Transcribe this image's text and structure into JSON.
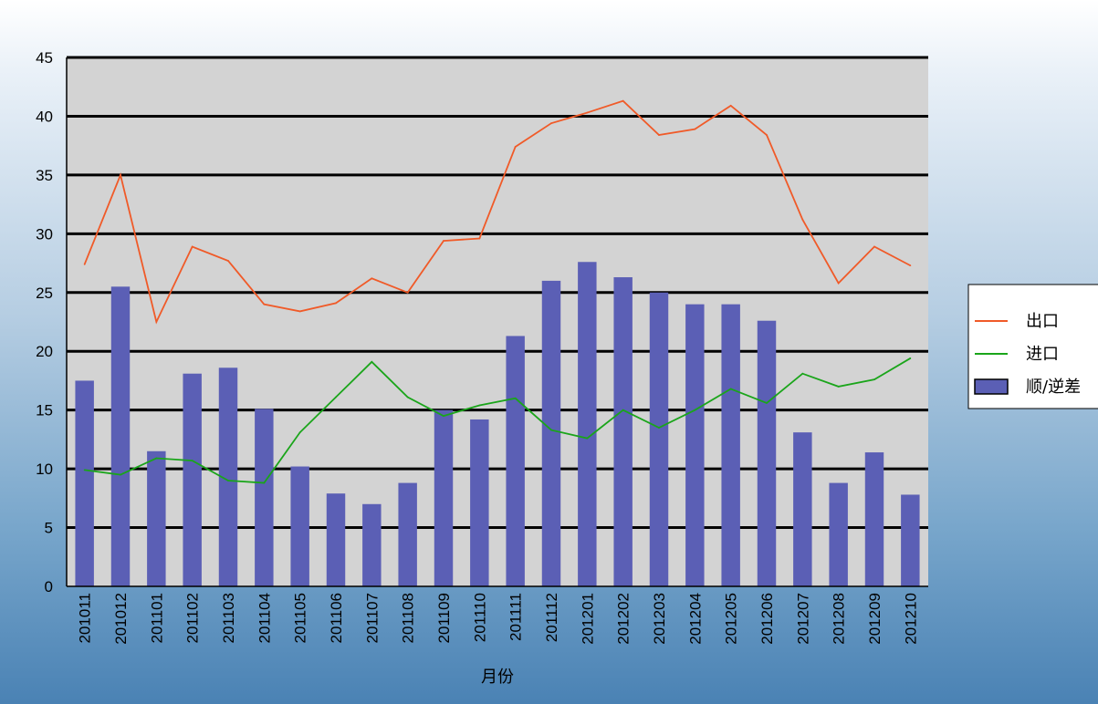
{
  "chart_data": {
    "type": "bar",
    "title": "",
    "xlabel": "月份",
    "ylabel": "",
    "ylim": [
      0,
      45
    ],
    "yticks": [
      0,
      5,
      10,
      15,
      20,
      25,
      30,
      35,
      40,
      45
    ],
    "grid": true,
    "legend_position": "right",
    "categories": [
      "201011",
      "201012",
      "201101",
      "201102",
      "201103",
      "201104",
      "201105",
      "201106",
      "201107",
      "201108",
      "201109",
      "201110",
      "201111",
      "201112",
      "201201",
      "201202",
      "201203",
      "201204",
      "201205",
      "201206",
      "201207",
      "201208",
      "201209",
      "201210"
    ],
    "series": [
      {
        "name": "出口",
        "type": "line",
        "color": "#f05a28",
        "values": [
          27.4,
          35.0,
          22.5,
          28.9,
          27.7,
          24.0,
          23.4,
          24.1,
          26.2,
          25.0,
          29.4,
          29.6,
          37.4,
          39.4,
          40.3,
          41.3,
          38.4,
          38.9,
          40.9,
          38.4,
          31.2,
          25.8,
          28.9,
          27.3
        ]
      },
      {
        "name": "进口",
        "type": "line",
        "color": "#1aa51a",
        "values": [
          9.9,
          9.5,
          10.9,
          10.7,
          9.0,
          8.8,
          13.1,
          16.1,
          19.1,
          16.1,
          14.5,
          15.4,
          16.0,
          13.3,
          12.6,
          15.0,
          13.5,
          15.0,
          16.8,
          15.6,
          18.1,
          17.0,
          17.6,
          19.4
        ]
      },
      {
        "name": "顺/逆差",
        "type": "bar",
        "color": "#5b5fb5",
        "values": [
          17.5,
          25.5,
          11.5,
          18.1,
          18.6,
          15.1,
          10.2,
          7.9,
          7.0,
          8.8,
          15.0,
          14.2,
          21.3,
          26.0,
          27.6,
          26.3,
          25.0,
          24.0,
          24.0,
          22.6,
          13.1,
          8.8,
          11.4,
          7.8
        ]
      }
    ]
  }
}
